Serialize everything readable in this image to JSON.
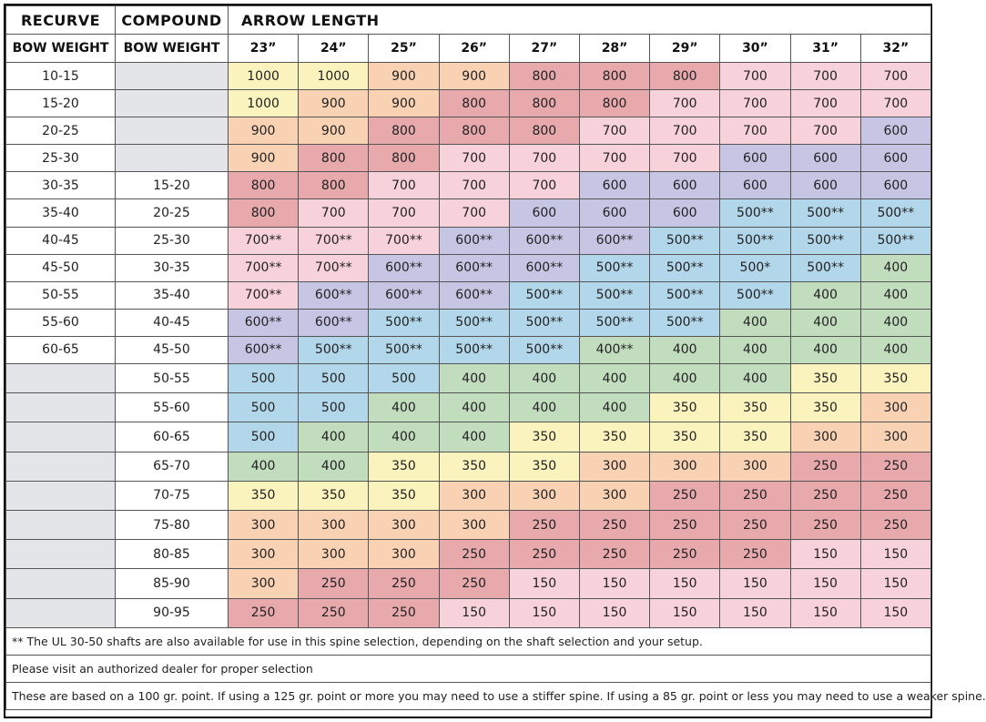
{
  "headers": {
    "recurve": "RECURVE",
    "compound": "COMPOUND",
    "arrow_length": "ARROW LENGTH",
    "bow_weight_recurve": "BOW WEIGHT",
    "bow_weight_compound": "BOW WEIGHT",
    "lengths": [
      "23”",
      "24”",
      "25”",
      "26”",
      "27”",
      "28”",
      "29”",
      "30”",
      "31”",
      "32”"
    ]
  },
  "colors": {
    "1000": "#fbf3bd",
    "900": "#f9d2b4",
    "800": "#e8a9ad",
    "700": "#f8d2db",
    "600": "#c7c5e4",
    "500": "#b2d7ea",
    "400": "#c2ddbe",
    "350": "#fbf3bd",
    "300": "#f9d2b4",
    "250": "#e8a9ad",
    "150": "#f8d2db"
  },
  "chart_data": {
    "type": "table",
    "title": "",
    "columns": [
      "RECURVE BOW WEIGHT",
      "COMPOUND BOW WEIGHT",
      "23”",
      "24”",
      "25”",
      "26”",
      "27”",
      "28”",
      "29”",
      "30”",
      "31”",
      "32”"
    ],
    "rows": [
      {
        "recurve": "10-15",
        "compound": "",
        "values": [
          "1000",
          "1000",
          "900",
          "900",
          "800",
          "800",
          "800",
          "700",
          "700",
          "700"
        ]
      },
      {
        "recurve": "15-20",
        "compound": "",
        "values": [
          "1000",
          "900",
          "900",
          "800",
          "800",
          "800",
          "700",
          "700",
          "700",
          "700"
        ]
      },
      {
        "recurve": "20-25",
        "compound": "",
        "values": [
          "900",
          "900",
          "800",
          "800",
          "800",
          "700",
          "700",
          "700",
          "700",
          "600"
        ]
      },
      {
        "recurve": "25-30",
        "compound": "",
        "values": [
          "900",
          "800",
          "800",
          "700",
          "700",
          "700",
          "700",
          "600",
          "600",
          "600"
        ]
      },
      {
        "recurve": "30-35",
        "compound": "15-20",
        "values": [
          "800",
          "800",
          "700",
          "700",
          "700",
          "600",
          "600",
          "600",
          "600",
          "600"
        ]
      },
      {
        "recurve": "35-40",
        "compound": "20-25",
        "values": [
          "800",
          "700",
          "700",
          "700",
          "600",
          "600",
          "600",
          "500**",
          "500**",
          "500**"
        ]
      },
      {
        "recurve": "40-45",
        "compound": "25-30",
        "values": [
          "700**",
          "700**",
          "700**",
          "600**",
          "600**",
          "600**",
          "500**",
          "500**",
          "500**",
          "500**"
        ]
      },
      {
        "recurve": "45-50",
        "compound": "30-35",
        "values": [
          "700**",
          "700**",
          "600**",
          "600**",
          "600**",
          "500**",
          "500**",
          "500*",
          "500**",
          "400"
        ]
      },
      {
        "recurve": "50-55",
        "compound": "35-40",
        "values": [
          "700**",
          "600**",
          "600**",
          "600**",
          "500**",
          "500**",
          "500**",
          "500**",
          "400",
          "400"
        ]
      },
      {
        "recurve": "55-60",
        "compound": "40-45",
        "values": [
          "600**",
          "600**",
          "500**",
          "500**",
          "500**",
          "500**",
          "500**",
          "400",
          "400",
          "400"
        ]
      },
      {
        "recurve": "60-65",
        "compound": "45-50",
        "values": [
          "600**",
          "500**",
          "500**",
          "500**",
          "500**",
          "400**",
          "400",
          "400",
          "400",
          "400"
        ]
      },
      {
        "recurve": "",
        "compound": "50-55",
        "values": [
          "500",
          "500",
          "500",
          "400",
          "400",
          "400",
          "400",
          "400",
          "350",
          "350"
        ]
      },
      {
        "recurve": "",
        "compound": "55-60",
        "values": [
          "500",
          "500",
          "400",
          "400",
          "400",
          "400",
          "350",
          "350",
          "350",
          "300"
        ]
      },
      {
        "recurve": "",
        "compound": "60-65",
        "values": [
          "500",
          "400",
          "400",
          "400",
          "350",
          "350",
          "350",
          "350",
          "300",
          "300"
        ]
      },
      {
        "recurve": "",
        "compound": "65-70",
        "values": [
          "400",
          "400",
          "350",
          "350",
          "350",
          "300",
          "300",
          "300",
          "250",
          "250"
        ]
      },
      {
        "recurve": "",
        "compound": "70-75",
        "values": [
          "350",
          "350",
          "350",
          "300",
          "300",
          "300",
          "250",
          "250",
          "250",
          "250"
        ]
      },
      {
        "recurve": "",
        "compound": "75-80",
        "values": [
          "300",
          "300",
          "300",
          "300",
          "250",
          "250",
          "250",
          "250",
          "250",
          "250"
        ]
      },
      {
        "recurve": "",
        "compound": "80-85",
        "values": [
          "300",
          "300",
          "300",
          "250",
          "250",
          "250",
          "250",
          "250",
          "150",
          "150"
        ]
      },
      {
        "recurve": "",
        "compound": "85-90",
        "values": [
          "300",
          "250",
          "250",
          "250",
          "150",
          "150",
          "150",
          "150",
          "150",
          "150"
        ]
      },
      {
        "recurve": "",
        "compound": "90-95",
        "values": [
          "250",
          "250",
          "250",
          "150",
          "150",
          "150",
          "150",
          "150",
          "150",
          "150"
        ]
      }
    ]
  },
  "notes": [
    "** The UL 30-50 shafts are also available for use in this spine selection, depending on the shaft selection and your setup.",
    "Please visit an authorized dealer for proper selection",
    "These are based on a 100 gr. point. If using a 125 gr. point or more you may need to use a stiffer spine. If using a 85 gr. point or less you may need to use a weaker spine."
  ]
}
